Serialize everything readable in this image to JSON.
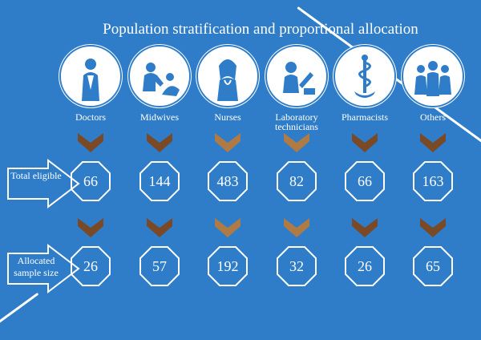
{
  "title": "Population stratification and proportional allocation",
  "groups": [
    {
      "label": "Doctors",
      "icon": "doctor-icon",
      "total": "66",
      "allocated": "26"
    },
    {
      "label": "Midwives",
      "icon": "midwife-icon",
      "total": "144",
      "allocated": "57"
    },
    {
      "label": "Nurses",
      "icon": "nurse-icon",
      "total": "483",
      "allocated": "192"
    },
    {
      "label": "Laboratory technicians",
      "icon": "lab-technician-icon",
      "total": "82",
      "allocated": "32"
    },
    {
      "label": "Pharmacists",
      "icon": "pharmacy-symbol-icon",
      "total": "66",
      "allocated": "26"
    },
    {
      "label": "Others",
      "icon": "health-team-icon",
      "total": "163",
      "allocated": "65"
    }
  ],
  "rows": {
    "total_label": "Total eligible",
    "allocated_label": "Allocated sample size"
  },
  "colors": {
    "background": "#2f7dc8",
    "chevron_dark": "#7a4a26",
    "chevron_light": "#b07a44",
    "outline": "#ffffff"
  }
}
